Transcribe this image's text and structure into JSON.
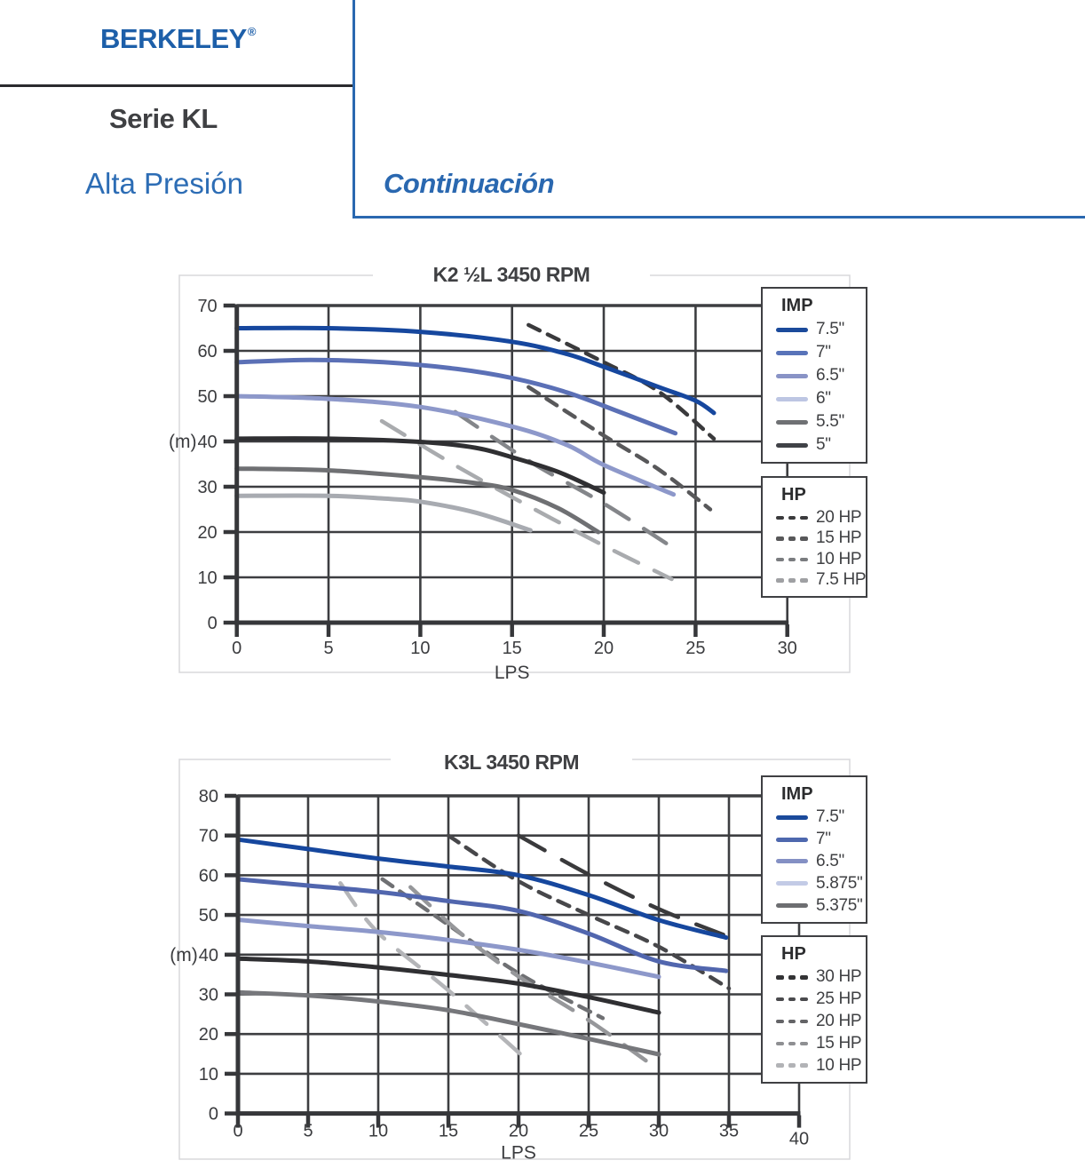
{
  "header": {
    "brand": "BERKELEY",
    "brand_reg": "®",
    "series": "Serie KL",
    "subtitle": "Alta Presión",
    "continuation": "Continuación",
    "colors": {
      "brand_blue": "#1d5fa9",
      "accent_blue": "#2a68b0",
      "dark_text": "#3f4043"
    }
  },
  "chart_data": [
    {
      "type": "line",
      "title": "K2 ½L 3450 RPM",
      "xlabel": "LPS",
      "ylabel": "(m)",
      "xlim": [
        0,
        30
      ],
      "ylim": [
        0,
        70
      ],
      "x_ticks": [
        0,
        5,
        10,
        15,
        20,
        25,
        30
      ],
      "y_ticks": [
        0,
        10,
        20,
        30,
        40,
        50,
        60,
        70
      ],
      "grid": true,
      "legend_imp": {
        "title": "IMP",
        "items": [
          {
            "label": "7.5\"",
            "color": "#1b4a9b"
          },
          {
            "label": "7\"",
            "color": "#5873b9"
          },
          {
            "label": "6.5\"",
            "color": "#8993c6"
          },
          {
            "label": "6\"",
            "color": "#bdc6e3"
          },
          {
            "label": "5.5\"",
            "color": "#6f7174"
          },
          {
            "label": "5\"",
            "color": "#404247"
          }
        ]
      },
      "legend_hp": {
        "title": "HP",
        "items": [
          {
            "label": "20 HP",
            "color": "#3a3a3c",
            "dash": true
          },
          {
            "label": "15 HP",
            "color": "#58585a",
            "dash": true
          },
          {
            "label": "10 HP",
            "color": "#7a7c7f",
            "dash": true
          },
          {
            "label": "7.5 HP",
            "color": "#9fa0a3",
            "dash": true
          }
        ]
      },
      "series": [
        {
          "name": "7.5\"",
          "group": "IMP",
          "color": "#16479e",
          "points": [
            [
              0,
              65
            ],
            [
              5,
              65
            ],
            [
              10,
              64.2
            ],
            [
              15,
              62
            ],
            [
              18,
              59.3
            ],
            [
              20,
              56.5
            ],
            [
              23,
              52
            ],
            [
              25,
              49
            ],
            [
              26,
              46.3
            ]
          ]
        },
        {
          "name": "7\"",
          "group": "IMP",
          "color": "#5b70b6",
          "points": [
            [
              0,
              57.5
            ],
            [
              4,
              58
            ],
            [
              8,
              57.5
            ],
            [
              12,
              56
            ],
            [
              15,
              54
            ],
            [
              18,
              50.8
            ],
            [
              21,
              46.3
            ],
            [
              23.9,
              41.8
            ]
          ]
        },
        {
          "name": "6.5\"",
          "group": "IMP",
          "color": "#8d98ca",
          "points": [
            [
              0,
              50
            ],
            [
              5,
              49.4
            ],
            [
              10,
              47.6
            ],
            [
              15,
              43.3
            ],
            [
              18,
              39.2
            ],
            [
              20,
              34.8
            ],
            [
              23.8,
              28.3
            ]
          ]
        },
        {
          "name": "6\"",
          "group": "IMP",
          "color": "#2f2f32",
          "points": [
            [
              0,
              40.6
            ],
            [
              5,
              40.6
            ],
            [
              10,
              39.9
            ],
            [
              13,
              38.6
            ],
            [
              15,
              36.5
            ],
            [
              17.5,
              33.3
            ],
            [
              20,
              28.7
            ]
          ]
        },
        {
          "name": "5.5\"",
          "group": "IMP",
          "color": "#6f7073",
          "points": [
            [
              0,
              34
            ],
            [
              5,
              33.6
            ],
            [
              10,
              32.1
            ],
            [
              13,
              30.8
            ],
            [
              15,
              29.3
            ],
            [
              17.5,
              25.3
            ],
            [
              19.7,
              20
            ]
          ]
        },
        {
          "name": "5\"",
          "group": "IMP",
          "color": "#a8abb1",
          "points": [
            [
              0,
              28
            ],
            [
              5,
              28
            ],
            [
              8,
              27.4
            ],
            [
              10,
              26.7
            ],
            [
              13,
              24.3
            ],
            [
              16,
              20.4
            ]
          ]
        },
        {
          "name": "20 HP",
          "group": "HP",
          "color": "#3a3a3c",
          "dash": [
            14,
            10
          ],
          "points": [
            [
              15.9,
              65.7
            ],
            [
              20,
              57.5
            ],
            [
              23,
              51
            ],
            [
              26,
              40.6
            ]
          ]
        },
        {
          "name": "15 HP",
          "group": "HP",
          "color": "#58585a",
          "dash": [
            14,
            10
          ],
          "points": [
            [
              15.9,
              52
            ],
            [
              20,
              41.3
            ],
            [
              23,
              33.8
            ],
            [
              25.8,
              25
            ]
          ]
        },
        {
          "name": "10 HP",
          "group": "HP",
          "color": "#84868a",
          "dash": [
            30,
            20
          ],
          "points": [
            [
              11.9,
              46.5
            ],
            [
              16,
              35.5
            ],
            [
              20,
              26.3
            ],
            [
              23.9,
              16.2
            ]
          ]
        },
        {
          "name": "7.5 HP",
          "group": "HP",
          "color": "#a9abae",
          "dash": [
            30,
            20
          ],
          "points": [
            [
              7.9,
              44.5
            ],
            [
              12,
              34.5
            ],
            [
              16,
              25.5
            ],
            [
              20,
              17
            ],
            [
              23.7,
              9.6
            ]
          ]
        }
      ]
    },
    {
      "type": "line",
      "title": "K3L 3450 RPM",
      "xlabel": "LPS",
      "ylabel": "(m)",
      "xlim": [
        0,
        40
      ],
      "ylim": [
        0,
        80
      ],
      "x_ticks": [
        0,
        5,
        10,
        15,
        20,
        25,
        30,
        35,
        40
      ],
      "y_ticks": [
        0,
        10,
        20,
        30,
        40,
        50,
        60,
        70,
        80
      ],
      "grid": true,
      "legend_imp": {
        "title": "IMP",
        "items": [
          {
            "label": "7.5\"",
            "color": "#1b4a9b"
          },
          {
            "label": "7\"",
            "color": "#4e68ae"
          },
          {
            "label": "6.5\"",
            "color": "#8490c4"
          },
          {
            "label": "5.875\"",
            "color": "#c3cbe6"
          },
          {
            "label": "5.375\"",
            "color": "#6d6e71"
          }
        ]
      },
      "legend_hp": {
        "title": "HP",
        "items": [
          {
            "label": "30 HP",
            "color": "#333335",
            "dash": true
          },
          {
            "label": "25 HP",
            "color": "#4a4a4d",
            "dash": true
          },
          {
            "label": "20 HP",
            "color": "#646467",
            "dash": true
          },
          {
            "label": "15 HP",
            "color": "#8e8f92",
            "dash": true
          },
          {
            "label": "10 HP",
            "color": "#b2b3b6",
            "dash": true
          }
        ]
      },
      "series": [
        {
          "name": "7.5\"",
          "group": "IMP",
          "color": "#16479e",
          "points": [
            [
              0,
              69
            ],
            [
              5,
              66.6
            ],
            [
              10,
              64.2
            ],
            [
              15,
              62.2
            ],
            [
              20,
              60
            ],
            [
              25,
              55
            ],
            [
              30,
              48.7
            ],
            [
              34.8,
              44.3
            ]
          ]
        },
        {
          "name": "7\"",
          "group": "IMP",
          "color": "#5166ae",
          "points": [
            [
              0,
              59
            ],
            [
              5,
              57.4
            ],
            [
              10,
              55.8
            ],
            [
              15,
              53.5
            ],
            [
              20,
              51
            ],
            [
              25,
              45.3
            ],
            [
              30,
              38.3
            ],
            [
              34.8,
              35.9
            ]
          ]
        },
        {
          "name": "6.5\"",
          "group": "IMP",
          "color": "#8d98ca",
          "points": [
            [
              0,
              48.8
            ],
            [
              5,
              47.2
            ],
            [
              10,
              45.7
            ],
            [
              15,
              43.7
            ],
            [
              20,
              41.2
            ],
            [
              25,
              38
            ],
            [
              30,
              34.4
            ]
          ]
        },
        {
          "name": "5.875\"",
          "group": "IMP",
          "color": "#2f2f32",
          "points": [
            [
              0,
              39
            ],
            [
              5,
              38.3
            ],
            [
              10,
              36.8
            ],
            [
              15,
              34.9
            ],
            [
              20,
              32.7
            ],
            [
              25,
              29.3
            ],
            [
              30,
              25.4
            ]
          ]
        },
        {
          "name": "5.375\"",
          "group": "IMP",
          "color": "#76777b",
          "points": [
            [
              0,
              30.5
            ],
            [
              5,
              29.7
            ],
            [
              10,
              28.2
            ],
            [
              15,
              26
            ],
            [
              20,
              22.5
            ],
            [
              25,
              18.8
            ],
            [
              30,
              14.9
            ]
          ]
        },
        {
          "name": "30 HP",
          "group": "HP",
          "color": "#3a3a3c",
          "dash": [
            34,
            22
          ],
          "points": [
            [
              20,
              70
            ],
            [
              25,
              60.2
            ],
            [
              30,
              51.5
            ],
            [
              34.6,
              45
            ]
          ]
        },
        {
          "name": "25 HP",
          "group": "HP",
          "color": "#47474a",
          "dash": [
            14,
            10
          ],
          "points": [
            [
              15,
              70
            ],
            [
              20,
              58.5
            ],
            [
              25,
              50
            ],
            [
              30,
              42
            ],
            [
              35,
              31.5
            ]
          ]
        },
        {
          "name": "20 HP",
          "group": "HP",
          "color": "#6f7073",
          "dash": [
            14,
            10
          ],
          "points": [
            [
              10.3,
              59
            ],
            [
              15,
              47.5
            ],
            [
              20,
              35.3
            ],
            [
              26,
              24
            ]
          ]
        },
        {
          "name": "15 HP",
          "group": "HP",
          "color": "#96979a",
          "dash": [
            30,
            20
          ],
          "points": [
            [
              12.3,
              57
            ],
            [
              16,
              45
            ],
            [
              20,
              34.5
            ],
            [
              25,
              23.5
            ],
            [
              29.6,
              12
            ]
          ]
        },
        {
          "name": "10 HP",
          "group": "HP",
          "color": "#b4b5b8",
          "dash": [
            30,
            20
          ],
          "points": [
            [
              7.3,
              58
            ],
            [
              10,
              45.5
            ],
            [
              15,
              31
            ],
            [
              20.6,
              13.5
            ]
          ]
        }
      ]
    }
  ]
}
